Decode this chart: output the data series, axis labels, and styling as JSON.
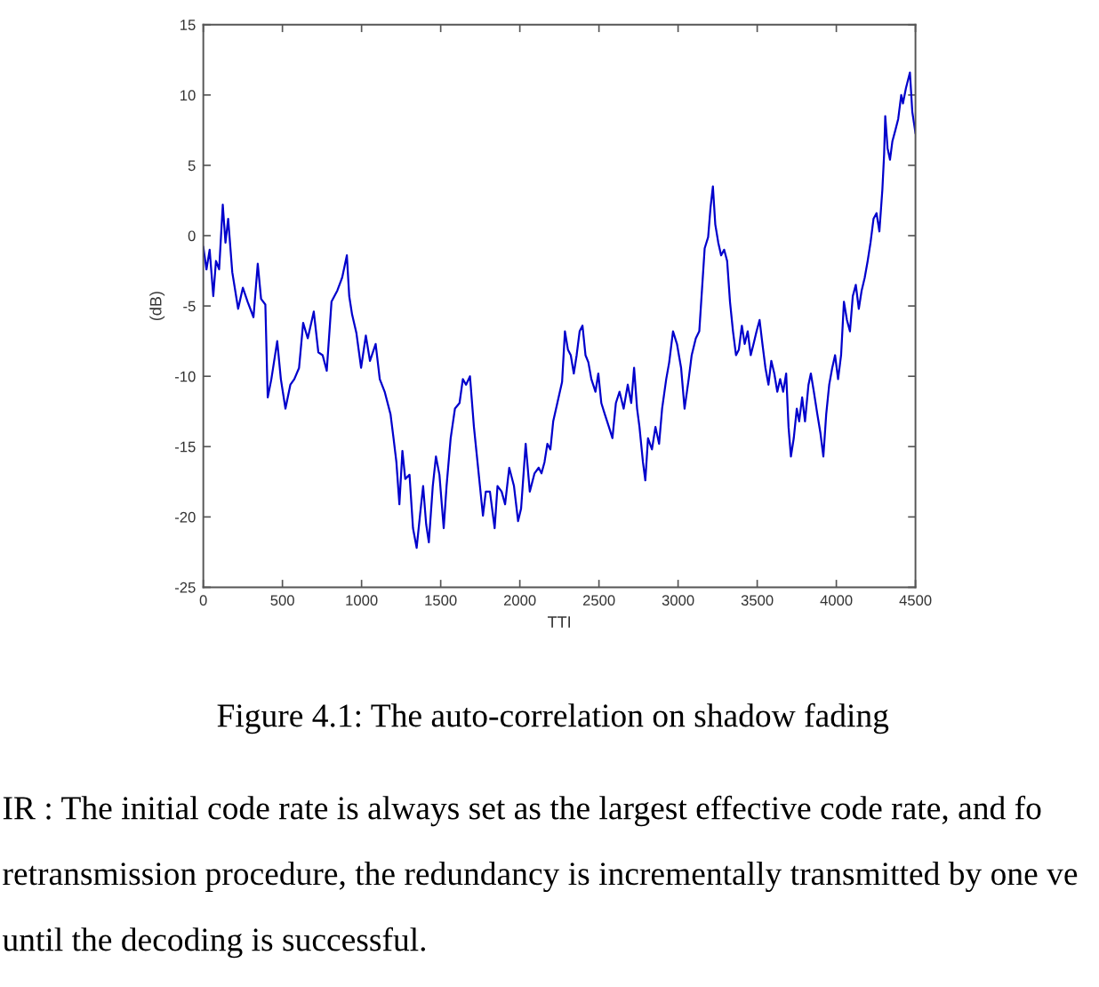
{
  "chart_data": {
    "type": "line",
    "xlabel": "TTI",
    "ylabel": "(dB)",
    "color": "#0000cc",
    "xlim": [
      0,
      4500
    ],
    "xticks": [
      0,
      500,
      1000,
      1500,
      2000,
      2500,
      3000,
      3500,
      4000,
      4500
    ],
    "ylim": [
      -25,
      15
    ],
    "yticks": [
      -25,
      -20,
      -15,
      -10,
      -5,
      0,
      5,
      10,
      15
    ],
    "x": [
      0,
      20,
      40,
      63,
      80,
      100,
      123,
      140,
      157,
      183,
      220,
      250,
      280,
      317,
      344,
      365,
      392,
      407,
      430,
      467,
      490,
      519,
      550,
      575,
      605,
      631,
      660,
      698,
      727,
      754,
      780,
      810,
      847,
      877,
      907,
      922,
      940,
      967,
      997,
      1027,
      1053,
      1089,
      1115,
      1146,
      1183,
      1202,
      1220,
      1239,
      1258,
      1276,
      1303,
      1325,
      1348,
      1370,
      1389,
      1408,
      1425,
      1450,
      1470,
      1492,
      1519,
      1537,
      1563,
      1590,
      1619,
      1640,
      1660,
      1685,
      1710,
      1748,
      1767,
      1785,
      1811,
      1841,
      1859,
      1885,
      1907,
      1933,
      1963,
      1989,
      2008,
      2037,
      2063,
      2093,
      2119,
      2137,
      2156,
      2174,
      2193,
      2211,
      2237,
      2267,
      2285,
      2304,
      2322,
      2341,
      2359,
      2378,
      2396,
      2415,
      2433,
      2452,
      2478,
      2496,
      2515,
      2537,
      2563,
      2585,
      2607,
      2630,
      2656,
      2682,
      2704,
      2722,
      2741,
      2756,
      2778,
      2793,
      2810,
      2835,
      2857,
      2880,
      2899,
      2925,
      2944,
      2968,
      2993,
      3019,
      3041,
      3067,
      3086,
      3112,
      3134,
      3153,
      3168,
      3190,
      3205,
      3220,
      3235,
      3254,
      3272,
      3291,
      3310,
      3328,
      3347,
      3366,
      3384,
      3403,
      3421,
      3440,
      3459,
      3477,
      3496,
      3515,
      3533,
      3552,
      3571,
      3589,
      3608,
      3627,
      3645,
      3664,
      3683,
      3698,
      3713,
      3731,
      3750,
      3765,
      3784,
      3802,
      3824,
      3839,
      3858,
      3880,
      3899,
      3918,
      3936,
      3955,
      3974,
      3992,
      4011,
      4030,
      4048,
      4067,
      4086,
      4104,
      4123,
      4142,
      4160,
      4179,
      4198,
      4216,
      4235,
      4254,
      4272,
      4291,
      4302,
      4309,
      4324,
      4339,
      4354,
      4373,
      4391,
      4410,
      4421,
      4440,
      4465,
      4480,
      4500
    ],
    "values": [
      -0.8,
      -2.4,
      -1.0,
      -4.3,
      -1.8,
      -2.4,
      2.2,
      -0.5,
      1.2,
      -2.6,
      -5.2,
      -3.7,
      -4.7,
      -5.8,
      -2.0,
      -4.5,
      -4.9,
      -11.5,
      -10.2,
      -7.5,
      -10.2,
      -12.3,
      -10.6,
      -10.2,
      -9.4,
      -6.2,
      -7.3,
      -5.4,
      -8.3,
      -8.5,
      -9.6,
      -4.7,
      -3.9,
      -3.0,
      -1.4,
      -4.3,
      -5.6,
      -6.9,
      -9.4,
      -7.1,
      -8.9,
      -7.7,
      -10.2,
      -11.1,
      -12.7,
      -14.4,
      -16.1,
      -19.1,
      -15.3,
      -17.3,
      -17.0,
      -20.8,
      -22.2,
      -19.8,
      -17.8,
      -20.5,
      -21.8,
      -17.8,
      -15.7,
      -17.0,
      -20.8,
      -17.8,
      -14.4,
      -12.3,
      -11.9,
      -10.2,
      -10.6,
      -10.0,
      -13.6,
      -17.8,
      -19.9,
      -18.2,
      -18.2,
      -20.8,
      -17.8,
      -18.2,
      -19.1,
      -16.5,
      -17.8,
      -20.3,
      -19.4,
      -14.8,
      -18.2,
      -16.9,
      -16.5,
      -16.9,
      -16.1,
      -14.8,
      -15.2,
      -13.2,
      -11.9,
      -10.4,
      -6.8,
      -8.1,
      -8.5,
      -9.8,
      -8.5,
      -6.8,
      -6.4,
      -8.5,
      -9.0,
      -10.2,
      -11.1,
      -9.8,
      -11.9,
      -12.7,
      -13.6,
      -14.4,
      -11.9,
      -11.1,
      -12.3,
      -10.6,
      -11.9,
      -9.4,
      -12.3,
      -13.6,
      -16.1,
      -17.4,
      -14.4,
      -15.2,
      -13.6,
      -14.8,
      -12.3,
      -10.2,
      -9.0,
      -6.8,
      -7.7,
      -9.4,
      -12.3,
      -10.2,
      -8.5,
      -7.3,
      -6.8,
      -3.5,
      -0.9,
      -0.1,
      2.0,
      3.5,
      0.8,
      -0.5,
      -1.4,
      -1.0,
      -1.8,
      -4.7,
      -6.8,
      -8.5,
      -8.1,
      -6.4,
      -7.7,
      -6.8,
      -8.5,
      -7.7,
      -6.8,
      -6.0,
      -7.7,
      -9.4,
      -10.6,
      -8.9,
      -9.8,
      -11.1,
      -10.2,
      -11.1,
      -9.8,
      -13.6,
      -15.7,
      -14.4,
      -12.3,
      -13.2,
      -11.5,
      -13.2,
      -10.6,
      -9.8,
      -11.1,
      -12.7,
      -14.0,
      -15.7,
      -12.7,
      -10.6,
      -9.4,
      -8.5,
      -10.2,
      -8.5,
      -4.7,
      -6.0,
      -6.8,
      -4.3,
      -3.5,
      -5.2,
      -3.9,
      -3.0,
      -1.8,
      -0.5,
      1.2,
      1.6,
      0.3,
      3.3,
      5.8,
      8.5,
      6.2,
      5.4,
      6.7,
      7.5,
      8.3,
      10.0,
      9.4,
      10.5,
      11.6,
      8.8,
      7.3
    ],
    "annotations": [
      "Figure 4.1: The auto-correlation on shadow fading",
      "IR : The initial code rate is always set as the largest effective code rate, and fo",
      "retransmission procedure, the redundancy is incrementally transmitted by one ve",
      "until the decoding is successful."
    ]
  }
}
